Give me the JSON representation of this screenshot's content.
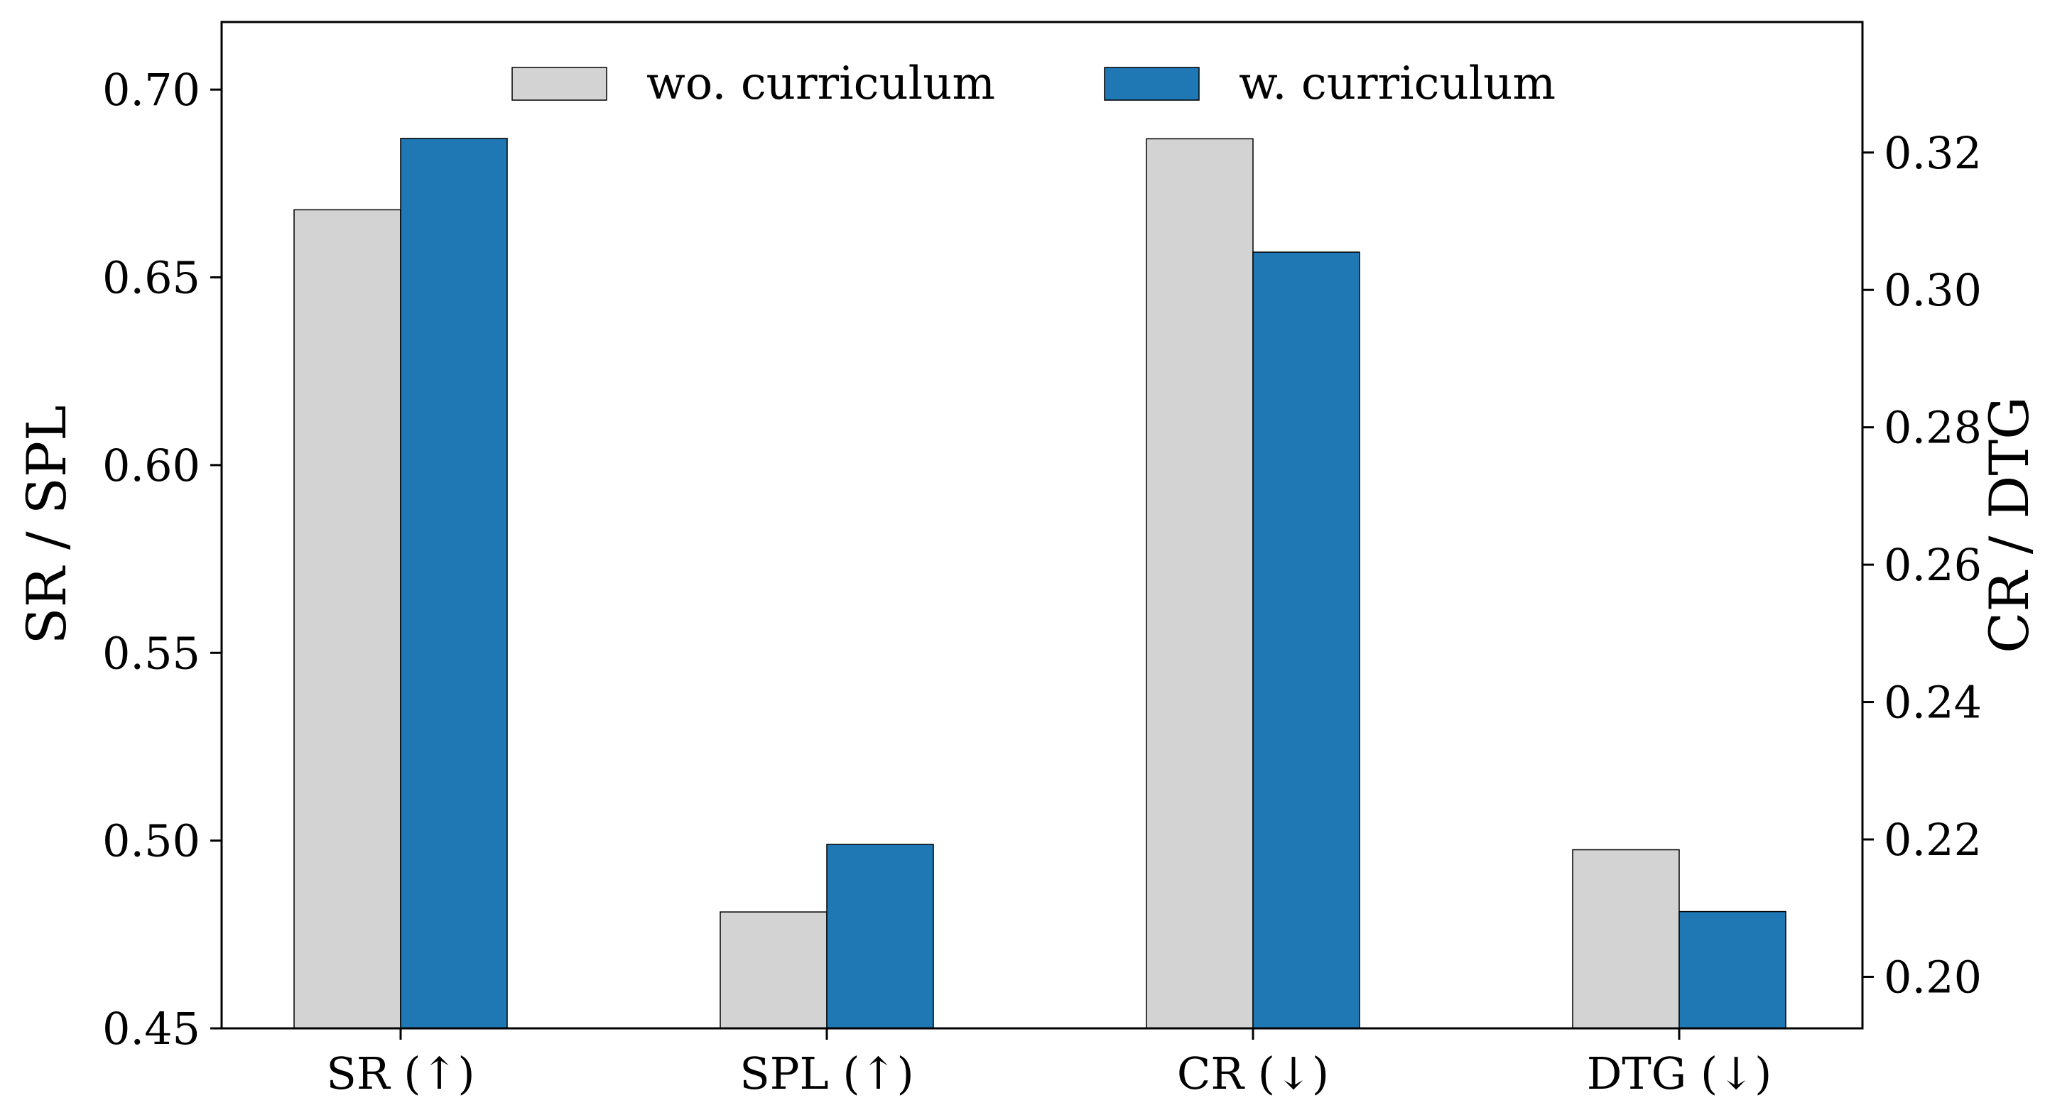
{
  "chart_data": {
    "type": "bar",
    "categories": [
      "SR (↑)",
      "SPL (↑)",
      "CR (↓)",
      "DTG (↓)"
    ],
    "series": [
      {
        "name": "wo. curriculum",
        "color": "#d3d3d3",
        "values": [
          0.668,
          0.481,
          0.322,
          0.2185
        ]
      },
      {
        "name": "w. curriculum",
        "color": "#1f77b4",
        "values": [
          0.687,
          0.499,
          0.3055,
          0.2095
        ]
      }
    ],
    "axis_assignment": [
      "left",
      "left",
      "right",
      "right"
    ],
    "ylabel_left": "SR / SPL",
    "ylabel_right": "CR / DTG",
    "ylim_left": [
      0.45,
      0.718
    ],
    "ylim_right": [
      0.1925,
      0.339
    ],
    "yticks_left": [
      "0.45",
      "0.50",
      "0.55",
      "0.60",
      "0.65",
      "0.70"
    ],
    "yticks_right": [
      "0.20",
      "0.22",
      "0.24",
      "0.26",
      "0.28",
      "0.30",
      "0.32"
    ],
    "legend_position": "upper-center",
    "grid": false
  }
}
